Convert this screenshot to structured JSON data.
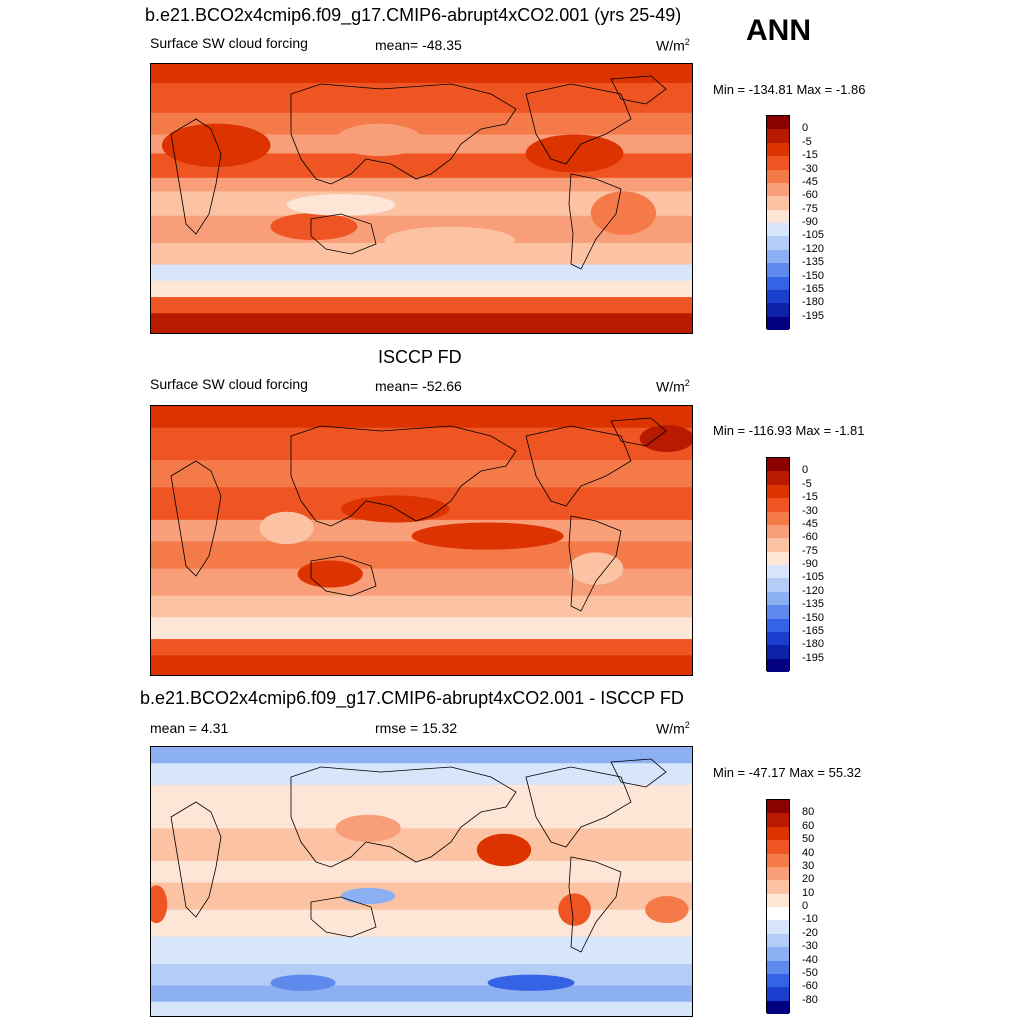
{
  "ann_label": "ANN",
  "panels": [
    {
      "title": "b.e21.BCO2x4cmip6.f09_g17.CMIP6-abrupt4xCO2.001 (yrs 25-49)",
      "left_label": "Surface SW cloud forcing",
      "mid_label": "mean= -48.35",
      "unit_base": "W/m",
      "unit_exp": "2",
      "minmax": "Min = -134.81 Max =  -1.86",
      "scale": "abs",
      "cbar_labels": [
        "0",
        "-5",
        "-15",
        "-30",
        "-45",
        "-60",
        "-75",
        "-90",
        "-105",
        "-120",
        "-135",
        "-150",
        "-165",
        "-180",
        "-195"
      ],
      "cbar_colors": [
        "#8b0000",
        "#b81a00",
        "#dd3300",
        "#ee5522",
        "#f47a4a",
        "#f89e78",
        "#fbc2a4",
        "#fde6d6",
        "#d7e6fa",
        "#b4cdf6",
        "#8cb0f2",
        "#5e8aee",
        "#3563e6",
        "#1a3fcf",
        "#0d22a8",
        "#000080"
      ]
    },
    {
      "title": "ISCCP FD",
      "left_label": "Surface SW cloud forcing",
      "mid_label": "mean= -52.66",
      "unit_base": "W/m",
      "unit_exp": "2",
      "minmax": "Min = -116.93 Max =  -1.81",
      "scale": "abs",
      "cbar_labels": [
        "0",
        "-5",
        "-15",
        "-30",
        "-45",
        "-60",
        "-75",
        "-90",
        "-105",
        "-120",
        "-135",
        "-150",
        "-165",
        "-180",
        "-195"
      ],
      "cbar_colors": [
        "#8b0000",
        "#b81a00",
        "#dd3300",
        "#ee5522",
        "#f47a4a",
        "#f89e78",
        "#fbc2a4",
        "#fde6d6",
        "#d7e6fa",
        "#b4cdf6",
        "#8cb0f2",
        "#5e8aee",
        "#3563e6",
        "#1a3fcf",
        "#0d22a8",
        "#000080"
      ]
    },
    {
      "title": "b.e21.BCO2x4cmip6.f09_g17.CMIP6-abrupt4xCO2.001 - ISCCP FD",
      "left_label": "mean =   4.31",
      "mid_label": "rmse =  15.32",
      "unit_base": "W/m",
      "unit_exp": "2",
      "minmax": "Min = -47.17 Max =  55.32",
      "scale": "diff",
      "cbar_labels": [
        "80",
        "60",
        "50",
        "40",
        "30",
        "20",
        "10",
        "0",
        "-10",
        "-20",
        "-30",
        "-40",
        "-50",
        "-60",
        "-80"
      ],
      "cbar_colors": [
        "#8b0000",
        "#b81a00",
        "#dd3300",
        "#ee5522",
        "#f47a4a",
        "#f89e78",
        "#fbc2a4",
        "#fde6d6",
        "#ffffff",
        "#d7e6fa",
        "#b4cdf6",
        "#8cb0f2",
        "#5e8aee",
        "#3563e6",
        "#1a3fcf",
        "#000080"
      ]
    }
  ]
}
